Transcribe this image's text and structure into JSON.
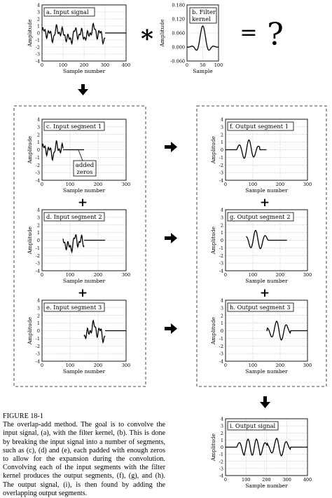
{
  "figure": {
    "top_row": {
      "convolve_symbol": "∗",
      "equals_symbol": "=",
      "question_mark": "?"
    },
    "plus_symbol": "+",
    "added_zeros_note": [
      "added",
      "zeros"
    ],
    "panels": {
      "a": {
        "title": "a.  Input signal",
        "xlabel": "Sample number",
        "ylabel": "Amplitude",
        "yticks": [
          "4",
          "3",
          "2",
          "1",
          "0",
          "-1",
          "-2",
          "-3",
          "-4"
        ],
        "xticks": [
          "0",
          "100",
          "200",
          "300",
          "400"
        ]
      },
      "b": {
        "title": [
          "b.  Filter",
          "kernel"
        ],
        "xlabel": "Sample",
        "ylabel": "Amplitude",
        "yticks": [
          "0.180",
          "0.120",
          "0.060",
          "0.000",
          "-0.060"
        ],
        "xticks": [
          "0",
          "50",
          "100"
        ]
      },
      "c": {
        "title": "c.  Input segment 1",
        "xlabel": "Sample number",
        "ylabel": "Amplitude",
        "yticks": [
          "4",
          "3",
          "2",
          "1",
          "0",
          "-1",
          "-2",
          "-3",
          "-4"
        ],
        "xticks": [
          "0",
          "100",
          "200",
          "300"
        ]
      },
      "d": {
        "title": "d.  Input segment 2",
        "xlabel": "Sample number",
        "ylabel": "Amplitude",
        "yticks": [
          "4",
          "3",
          "2",
          "1",
          "0",
          "-1",
          "-2",
          "-3",
          "-4"
        ],
        "xticks": [
          "0",
          "100",
          "200",
          "300"
        ]
      },
      "e": {
        "title": "e.  Input segment 3",
        "xlabel": "Sample number",
        "ylabel": "Amplitude",
        "yticks": [
          "4",
          "3",
          "2",
          "1",
          "0",
          "-1",
          "-2",
          "-3",
          "-4"
        ],
        "xticks": [
          "0",
          "100",
          "200",
          "300"
        ]
      },
      "f": {
        "title": "f.  Output segment 1",
        "xlabel": "Sample number",
        "ylabel": "Amplitude",
        "yticks": [
          "4",
          "3",
          "2",
          "1",
          "0",
          "-1",
          "-2",
          "-3",
          "-4"
        ],
        "xticks": [
          "0",
          "100",
          "200",
          "300"
        ]
      },
      "g": {
        "title": "g.  Output segment 2",
        "xlabel": "Sample number",
        "ylabel": "Amplitude",
        "yticks": [
          "4",
          "3",
          "2",
          "1",
          "0",
          "-1",
          "-2",
          "-3",
          "-4"
        ],
        "xticks": [
          "0",
          "100",
          "200",
          "300"
        ]
      },
      "h": {
        "title": "h.  Output segment 3",
        "xlabel": "Sample number",
        "ylabel": "Amplitude",
        "yticks": [
          "4",
          "3",
          "2",
          "1",
          "0",
          "-1",
          "-2",
          "-3",
          "-4"
        ],
        "xticks": [
          "0",
          "100",
          "200",
          "300"
        ]
      },
      "i": {
        "title": "i.  Output signal",
        "xlabel": "Sample number",
        "ylabel": "Amplitude",
        "yticks": [
          "4",
          "3",
          "2",
          "1",
          "0",
          "-1",
          "-2",
          "-3",
          "-4"
        ],
        "xticks": [
          "0",
          "100",
          "200",
          "300",
          "400"
        ]
      }
    }
  },
  "caption": {
    "title": "FIGURE 18-1",
    "body": "The overlap-add method. The goal is to convolve the input signal, (a), with the filter kernel, (b). This is done by breaking the input signal into a number of segments, such as (c), (d) and (e), each padded with enough zeros to allow for the expansion during the convolution. Convolving each of the input segments with the filter kernel produces the output segments, (f), (g), and (h). The output signal, (i), is then found by adding the overlapping output segments."
  }
}
